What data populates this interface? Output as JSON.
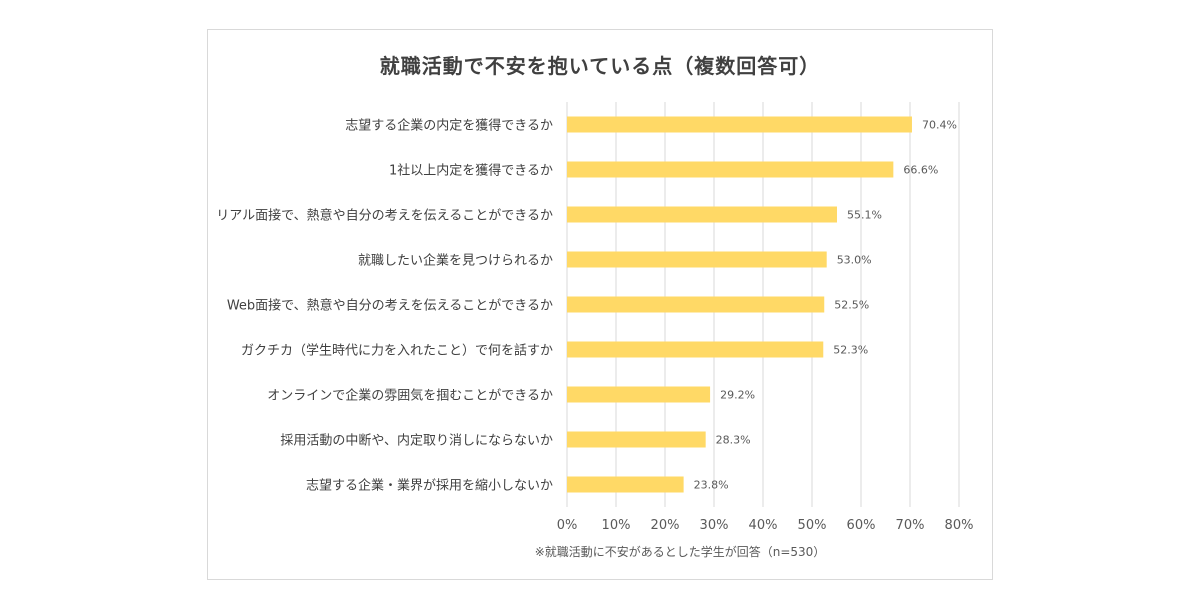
{
  "chart_data": {
    "type": "bar",
    "orientation": "horizontal",
    "title": "就職活動で不安を抱いている点（複数回答可）",
    "categories": [
      "志望する企業の内定を獲得できるか",
      "1社以上内定を獲得できるか",
      "リアル面接で、熱意や自分の考えを伝えることができるか",
      "就職したい企業を見つけられるか",
      "Web面接で、熱意や自分の考えを伝えることができるか",
      "ガクチカ（学生時代に力を入れたこと）で何を話すか",
      "オンラインで企業の雰囲気を掴むことができるか",
      "採用活動の中断や、内定取り消しにならないか",
      "志望する企業・業界が採用を縮小しないか"
    ],
    "values": [
      70.4,
      66.6,
      55.1,
      53.0,
      52.5,
      52.3,
      29.2,
      28.3,
      23.8
    ],
    "value_labels": [
      "70.4%",
      "66.6%",
      "55.1%",
      "53.0%",
      "52.5%",
      "52.3%",
      "29.2%",
      "28.3%",
      "23.8%"
    ],
    "xlim": [
      0,
      80
    ],
    "xticks": [
      0,
      10,
      20,
      30,
      40,
      50,
      60,
      70,
      80
    ],
    "xtick_labels": [
      "0%",
      "10%",
      "20%",
      "30%",
      "40%",
      "50%",
      "60%",
      "70%",
      "80%"
    ],
    "grid": true,
    "bar_color": "#FFD966",
    "grid_color": "#d9d9d9",
    "note": "※就職活動に不安があるとした学生が回答（n=530）"
  }
}
